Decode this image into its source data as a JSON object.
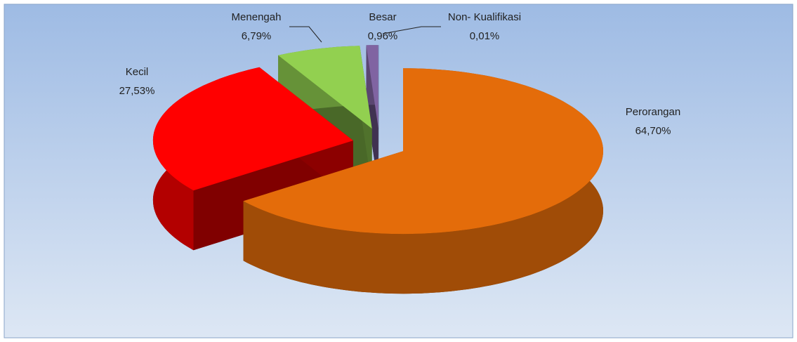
{
  "chart_data": {
    "type": "pie3d",
    "categories": [
      "Perorangan",
      "Kecil",
      "Menengah",
      "Besar",
      "Non- Kualifikasi"
    ],
    "values": [
      64.7,
      27.53,
      6.79,
      0.96,
      0.01
    ],
    "value_labels": [
      "64,70%",
      "27,53%",
      "6,79%",
      "0,96%",
      "0,01%"
    ],
    "colors": [
      "#e46c0a",
      "#ff0000",
      "#92d050",
      "#8064a2",
      "#4f81bd"
    ]
  }
}
